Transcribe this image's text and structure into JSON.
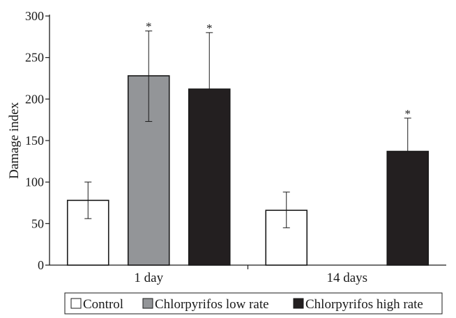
{
  "chart_data": {
    "type": "bar",
    "title": "",
    "xlabel": "",
    "ylabel": "Damage index",
    "ylim": [
      0,
      300
    ],
    "yticks": [
      0,
      50,
      100,
      150,
      200,
      250,
      300
    ],
    "grid": false,
    "legend_position": "bottom",
    "categories": [
      "1 day",
      "14 days"
    ],
    "series": [
      {
        "name": "Control",
        "color": "#ffffff",
        "values": [
          78,
          66
        ],
        "error_low": [
          56,
          45
        ],
        "error_high": [
          100,
          88
        ],
        "significance": [
          "",
          ""
        ]
      },
      {
        "name": "Chlorpyrifos low rate",
        "color": "#939598",
        "values": [
          228,
          null
        ],
        "error_low": [
          173,
          null
        ],
        "error_high": [
          282,
          null
        ],
        "significance": [
          "*",
          ""
        ]
      },
      {
        "name": "Chlorpyrifos high rate",
        "color": "#231f20",
        "values": [
          212,
          137
        ],
        "error_low": [
          null,
          null
        ],
        "error_high": [
          280,
          177
        ],
        "significance": [
          "*",
          "*"
        ]
      }
    ]
  }
}
